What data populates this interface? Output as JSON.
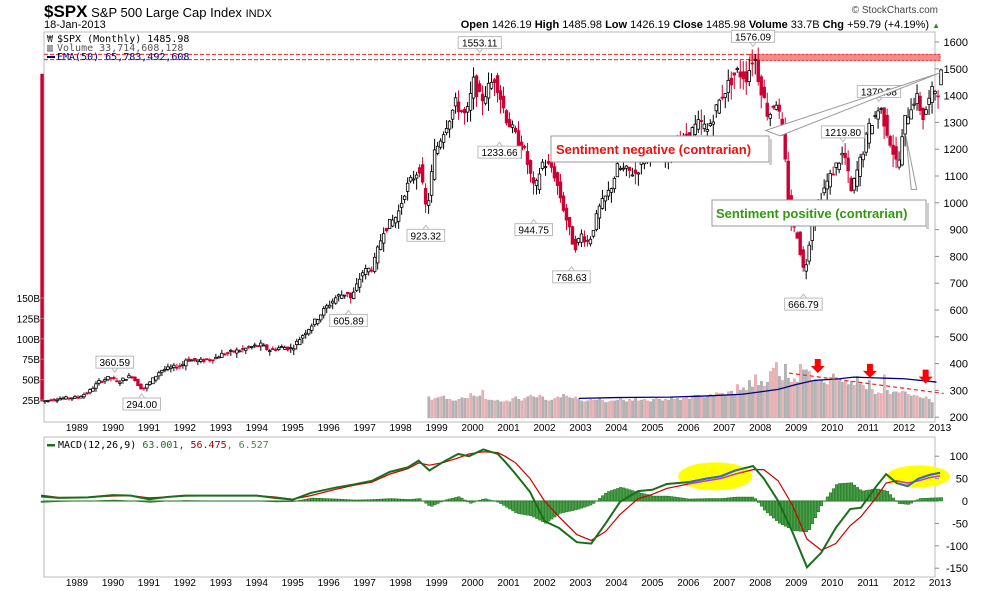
{
  "header": {
    "symbol": "$SPX",
    "name": "S&P 500 Large Cap Index",
    "exchange": "INDX",
    "date": "18-Jan-2013",
    "copyright": "© StockCharts.com",
    "open_label": "Open",
    "open": "1426.19",
    "high_label": "High",
    "high": "1485.98",
    "low_label": "Low",
    "low": "1426.19",
    "close_label": "Close",
    "close": "1485.98",
    "volume_label": "Volume",
    "volume": "33.7B",
    "chg_label": "Chg",
    "chg": "+59.79 (+4.19%)",
    "chg_icon": "up-triangle-icon"
  },
  "legend": {
    "price": "$SPX (Monthly) 1485.98",
    "volume": "Volume 33,714,608,128",
    "ema": "EMA(50) 65,783,492,608",
    "macd_label": "MACD(12,26,9)",
    "macd_value": "63.001",
    "macd_signal": "56.475",
    "macd_hist": "6.527"
  },
  "annotations": {
    "sentiment_negative": "Sentiment negative (contrarian)",
    "sentiment_positive": "Sentiment positive (contrarian)"
  },
  "colors": {
    "up_candle": "#000000",
    "down_candle": "#cc0033",
    "volume_up": "#b4b4b4",
    "volume_down": "#e8b4b8",
    "ema_line": "#000080",
    "macd_line": "#1a6e1a",
    "signal_line": "#cc0000",
    "hist_fill": "#4aa04a",
    "highlight": "#ffff00",
    "resistance": "#ee2222",
    "negative_text": "#ee1111",
    "positive_text": "#339911"
  },
  "chart_data": [
    {
      "type": "candlestick",
      "title": "$SPX (Monthly)",
      "x_range": [
        1988,
        2013
      ],
      "x_ticks": [
        "1989",
        "1990",
        "1991",
        "1992",
        "1993",
        "1994",
        "1995",
        "1996",
        "1997",
        "1998",
        "1999",
        "2000",
        "2001",
        "2002",
        "2003",
        "2004",
        "2005",
        "2006",
        "2007",
        "2008",
        "2009",
        "2010",
        "2011",
        "2012",
        "2013"
      ],
      "y_right_ticks": [
        "1600",
        "1500",
        "1400",
        "1300",
        "1200",
        "1100",
        "1000",
        "900",
        "800",
        "700",
        "600",
        "500",
        "400",
        "300",
        "200"
      ],
      "y_right_range": [
        200,
        1600
      ],
      "price_path": [
        [
          1988.0,
          260
        ],
        [
          1988.5,
          270
        ],
        [
          1989.0,
          275
        ],
        [
          1989.3,
          295
        ],
        [
          1989.6,
          335
        ],
        [
          1989.9,
          350
        ],
        [
          1990.1,
          330
        ],
        [
          1990.3,
          345
        ],
        [
          1990.5,
          355
        ],
        [
          1990.7,
          315
        ],
        [
          1990.8,
          305
        ],
        [
          1991.0,
          330
        ],
        [
          1991.3,
          375
        ],
        [
          1991.6,
          385
        ],
        [
          1991.9,
          395
        ],
        [
          1992.0,
          415
        ],
        [
          1992.4,
          410
        ],
        [
          1992.8,
          420
        ],
        [
          1993.0,
          435
        ],
        [
          1993.5,
          450
        ],
        [
          1993.9,
          465
        ],
        [
          1994.1,
          470
        ],
        [
          1994.3,
          450
        ],
        [
          1994.7,
          462
        ],
        [
          1994.9,
          455
        ],
        [
          1995.0,
          465
        ],
        [
          1995.3,
          515
        ],
        [
          1995.6,
          560
        ],
        [
          1995.9,
          610
        ],
        [
          1996.2,
          650
        ],
        [
          1996.5,
          665
        ],
        [
          1996.6,
          640
        ],
        [
          1996.9,
          740
        ],
        [
          1997.2,
          760
        ],
        [
          1997.5,
          900
        ],
        [
          1997.8,
          940
        ],
        [
          1997.9,
          960
        ],
        [
          1998.1,
          1050
        ],
        [
          1998.5,
          1130
        ],
        [
          1998.7,
          960
        ],
        [
          1998.9,
          1180
        ],
        [
          1999.2,
          1280
        ],
        [
          1999.5,
          1370
        ],
        [
          1999.8,
          1320
        ],
        [
          2000.0,
          1450
        ],
        [
          2000.2,
          1380
        ],
        [
          2000.6,
          1470
        ],
        [
          2000.9,
          1320
        ],
        [
          2001.2,
          1240
        ],
        [
          2001.4,
          1200
        ],
        [
          2001.7,
          1040
        ],
        [
          2001.9,
          1150
        ],
        [
          2002.2,
          1130
        ],
        [
          2002.5,
          980
        ],
        [
          2002.8,
          830
        ],
        [
          2003.0,
          880
        ],
        [
          2003.2,
          850
        ],
        [
          2003.5,
          980
        ],
        [
          2003.8,
          1050
        ],
        [
          2004.0,
          1130
        ],
        [
          2004.5,
          1110
        ],
        [
          2004.9,
          1200
        ],
        [
          2005.3,
          1180
        ],
        [
          2005.8,
          1230
        ],
        [
          2006.3,
          1300
        ],
        [
          2006.5,
          1270
        ],
        [
          2006.9,
          1400
        ],
        [
          2007.3,
          1490
        ],
        [
          2007.6,
          1470
        ],
        [
          2007.8,
          1560
        ],
        [
          2007.9,
          1480
        ],
        [
          2008.2,
          1320
        ],
        [
          2008.4,
          1390
        ],
        [
          2008.6,
          1260
        ],
        [
          2008.8,
          930
        ],
        [
          2009.0,
          880
        ],
        [
          2009.2,
          730
        ],
        [
          2009.4,
          920
        ],
        [
          2009.7,
          1040
        ],
        [
          2010.0,
          1120
        ],
        [
          2010.3,
          1190
        ],
        [
          2010.5,
          1040
        ],
        [
          2010.8,
          1180
        ],
        [
          2011.0,
          1280
        ],
        [
          2011.3,
          1360
        ],
        [
          2011.6,
          1220
        ],
        [
          2011.8,
          1130
        ],
        [
          2012.0,
          1310
        ],
        [
          2012.3,
          1400
        ],
        [
          2012.5,
          1320
        ],
        [
          2012.8,
          1430
        ],
        [
          2012.9,
          1410
        ],
        [
          2013.0,
          1480
        ]
      ],
      "labels": [
        {
          "x": 1990.05,
          "y": 360.59,
          "text": "360.59",
          "pos": "above"
        },
        {
          "x": 1990.8,
          "y": 294.0,
          "text": "294.00",
          "pos": "below"
        },
        {
          "x": 1996.55,
          "y": 605.89,
          "text": "605.89",
          "pos": "below"
        },
        {
          "x": 1998.7,
          "y": 923.32,
          "text": "923.32",
          "pos": "below"
        },
        {
          "x": 2000.2,
          "y": 1553.11,
          "text": "1553.11",
          "pos": "above"
        },
        {
          "x": 2000.75,
          "y": 1233.66,
          "text": "1233.66",
          "pos": "below"
        },
        {
          "x": 2001.7,
          "y": 944.75,
          "text": "944.75",
          "pos": "below"
        },
        {
          "x": 2002.75,
          "y": 768.63,
          "text": "768.63",
          "pos": "below"
        },
        {
          "x": 2007.8,
          "y": 1576.09,
          "text": "1576.09",
          "pos": "above"
        },
        {
          "x": 2009.2,
          "y": 666.79,
          "text": "666.79",
          "pos": "below"
        },
        {
          "x": 2010.3,
          "y": 1219.8,
          "text": "1219.80",
          "pos": "above"
        },
        {
          "x": 2011.3,
          "y": 1370.58,
          "text": "1370.58",
          "pos": "above"
        }
      ],
      "resistance_zone": [
        1553.11,
        1576.09
      ]
    },
    {
      "type": "bar",
      "title": "Volume",
      "y_left_ticks": [
        "150B",
        "125B",
        "100B",
        "75B",
        "50B",
        "25B"
      ],
      "y_left_range": [
        0,
        150
      ],
      "start_year": 1998.75,
      "values": [
        29,
        25,
        27,
        28,
        29,
        30,
        26,
        26,
        24,
        24,
        26,
        28,
        27,
        27,
        33,
        30,
        29,
        30,
        37,
        26,
        25,
        25,
        24,
        25,
        23,
        23,
        24,
        23,
        27,
        29,
        26,
        24,
        27,
        29,
        31,
        29,
        28,
        31,
        29,
        25,
        24,
        25,
        27,
        29,
        28,
        32,
        30,
        28,
        27,
        29,
        26,
        24,
        23,
        24,
        26,
        25,
        25,
        27,
        25,
        22,
        23,
        24,
        24,
        25,
        27,
        25,
        23,
        26,
        24,
        27,
        24,
        25,
        26,
        24,
        23,
        26,
        27,
        26,
        24,
        26,
        25,
        29,
        26,
        27,
        25,
        27,
        28,
        26,
        30,
        31,
        31,
        30,
        28,
        30,
        32,
        30,
        34,
        33,
        33,
        31,
        35,
        36,
        32,
        44,
        37,
        40,
        37,
        49,
        41,
        56,
        43,
        48,
        42,
        47,
        60,
        64,
        71,
        54,
        49,
        69,
        52,
        47,
        51,
        47,
        69,
        62,
        62,
        60,
        48,
        50,
        48,
        50,
        46,
        44,
        53,
        57,
        53,
        48,
        47,
        49,
        44,
        48,
        43,
        54,
        45,
        43,
        38,
        49,
        38,
        32,
        34,
        33,
        56,
        37,
        32,
        35,
        35,
        34,
        36,
        35,
        32,
        30,
        31,
        30,
        28,
        27,
        29,
        26,
        22
      ]
    },
    {
      "type": "line",
      "title": "MACD(12,26,9)",
      "y_ticks": [
        "100",
        "50",
        "0",
        "-50",
        "-100",
        "-150"
      ],
      "y_range": [
        -160,
        140
      ],
      "series": [
        {
          "name": "MACD",
          "values": [
            [
              1988,
              10
            ],
            [
              1988.5,
              7
            ],
            [
              1989.3,
              8
            ],
            [
              1990,
              13
            ],
            [
              1990.5,
              12
            ],
            [
              1991,
              4
            ],
            [
              1991.5,
              9
            ],
            [
              1992,
              12
            ],
            [
              1993,
              12
            ],
            [
              1994,
              12
            ],
            [
              1994.5,
              7
            ],
            [
              1995,
              3
            ],
            [
              1995.5,
              18
            ],
            [
              1996.2,
              30
            ],
            [
              1996.7,
              37
            ],
            [
              1997.2,
              45
            ],
            [
              1997.7,
              65
            ],
            [
              1998.2,
              75
            ],
            [
              1998.5,
              90
            ],
            [
              1998.8,
              68
            ],
            [
              1999.2,
              88
            ],
            [
              1999.6,
              105
            ],
            [
              1999.9,
              100
            ],
            [
              2000.3,
              115
            ],
            [
              2000.7,
              105
            ],
            [
              2000.9,
              88
            ],
            [
              2001.2,
              60
            ],
            [
              2001.6,
              20
            ],
            [
              2002,
              -45
            ],
            [
              2002.4,
              -60
            ],
            [
              2002.9,
              -92
            ],
            [
              2003.3,
              -95
            ],
            [
              2003.7,
              -50
            ],
            [
              2004.1,
              -2
            ],
            [
              2004.6,
              22
            ],
            [
              2005,
              25
            ],
            [
              2005.4,
              38
            ],
            [
              2006,
              42
            ],
            [
              2006.5,
              50
            ],
            [
              2006.9,
              55
            ],
            [
              2007.3,
              68
            ],
            [
              2007.8,
              78
            ],
            [
              2008.1,
              50
            ],
            [
              2008.5,
              0
            ],
            [
              2008.9,
              -70
            ],
            [
              2009.3,
              -148
            ],
            [
              2009.7,
              -115
            ],
            [
              2010.1,
              -60
            ],
            [
              2010.5,
              -18
            ],
            [
              2010.8,
              -15
            ],
            [
              2011.2,
              30
            ],
            [
              2011.5,
              60
            ],
            [
              2011.8,
              40
            ],
            [
              2012.1,
              33
            ],
            [
              2012.4,
              50
            ],
            [
              2012.7,
              58
            ],
            [
              2013,
              63
            ]
          ]
        },
        {
          "name": "Signal",
          "values": [
            [
              1988,
              13
            ],
            [
              1988.5,
              8
            ],
            [
              1989.3,
              8
            ],
            [
              1990,
              11
            ],
            [
              1990.5,
              12
            ],
            [
              1991,
              7
            ],
            [
              1991.5,
              9
            ],
            [
              1992,
              11
            ],
            [
              1993,
              12
            ],
            [
              1994,
              12
            ],
            [
              1994.5,
              9
            ],
            [
              1995,
              4
            ],
            [
              1995.5,
              12
            ],
            [
              1996.2,
              26
            ],
            [
              1996.7,
              35
            ],
            [
              1997.2,
              42
            ],
            [
              1997.7,
              60
            ],
            [
              1998.2,
              72
            ],
            [
              1998.5,
              85
            ],
            [
              1998.8,
              80
            ],
            [
              1999.2,
              86
            ],
            [
              1999.6,
              96
            ],
            [
              1999.9,
              105
            ],
            [
              2000.3,
              110
            ],
            [
              2000.7,
              108
            ],
            [
              2000.9,
              100
            ],
            [
              2001.2,
              85
            ],
            [
              2001.6,
              50
            ],
            [
              2002,
              0
            ],
            [
              2002.4,
              -35
            ],
            [
              2002.9,
              -75
            ],
            [
              2003.3,
              -88
            ],
            [
              2003.7,
              -68
            ],
            [
              2004.1,
              -30
            ],
            [
              2004.6,
              5
            ],
            [
              2005,
              15
            ],
            [
              2005.4,
              28
            ],
            [
              2006,
              38
            ],
            [
              2006.5,
              45
            ],
            [
              2006.9,
              50
            ],
            [
              2007.3,
              60
            ],
            [
              2007.8,
              70
            ],
            [
              2008.1,
              70
            ],
            [
              2008.5,
              45
            ],
            [
              2008.9,
              -10
            ],
            [
              2009.3,
              -85
            ],
            [
              2009.7,
              -110
            ],
            [
              2010.1,
              -95
            ],
            [
              2010.5,
              -55
            ],
            [
              2010.8,
              -35
            ],
            [
              2011.2,
              5
            ],
            [
              2011.5,
              40
            ],
            [
              2011.8,
              45
            ],
            [
              2012.1,
              40
            ],
            [
              2012.4,
              45
            ],
            [
              2012.7,
              52
            ],
            [
              2013,
              56
            ]
          ]
        }
      ],
      "highlights": [
        [
          2006.0,
          2007.5
        ],
        [
          2011.8,
          2013.0
        ]
      ]
    }
  ]
}
